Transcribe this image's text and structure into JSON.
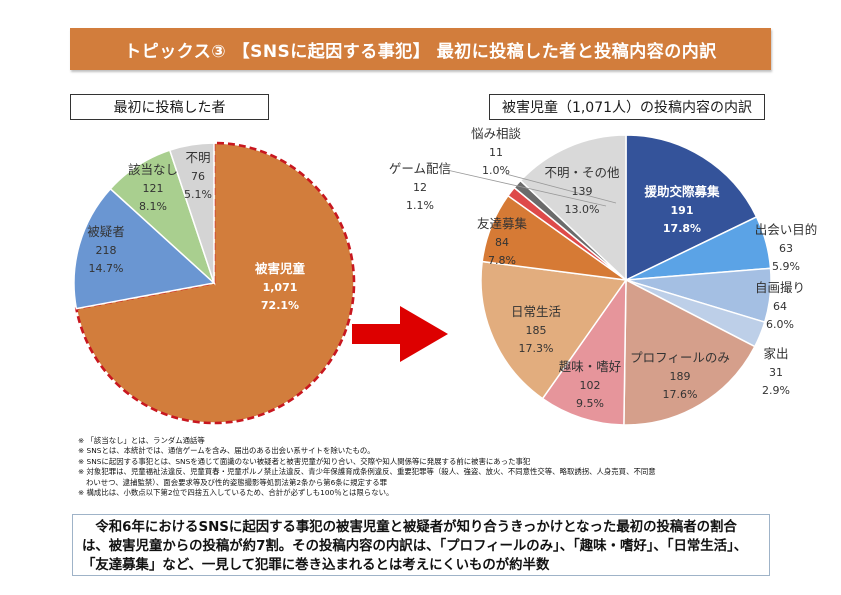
{
  "banner": {
    "title": "トピックス③ 【SNSに起因する事犯】 最初に投稿した者と投稿内容の内訳"
  },
  "arrow": {
    "color": "#dd0000"
  },
  "chart_data": [
    {
      "type": "pie",
      "title": "最初に投稿した者",
      "start": "12 o'clock, clockwise",
      "slices": [
        {
          "label": "被害児童",
          "value": 1071,
          "value_label": "1,071",
          "percent": "72.1%",
          "color": "#d27d3c",
          "highlight": true,
          "label_color": "#ffffff"
        },
        {
          "label": "被疑者",
          "value": 218,
          "value_label": "218",
          "percent": "14.7%",
          "color": "#6a96d2",
          "label_color": "#333333"
        },
        {
          "label": "該当なし",
          "value": 121,
          "value_label": "121",
          "percent": "8.1%",
          "color": "#a9cf8f",
          "label_color": "#333333"
        },
        {
          "label": "不明",
          "value": 76,
          "value_label": "76",
          "percent": "5.1%",
          "color": "#d4d4d4",
          "label_color": "#333333"
        }
      ],
      "highlight_border_color": "#c8171f"
    },
    {
      "type": "pie",
      "title": "被害児童（1,071人）の投稿内容の内訳",
      "start": "12 o'clock, clockwise",
      "slices": [
        {
          "label": "援助交際募集",
          "value": 191,
          "value_label": "191",
          "percent": "17.8%",
          "color": "#34539a",
          "label_color": "#ffffff"
        },
        {
          "label": "出会い目的",
          "value": 63,
          "value_label": "63",
          "percent": "5.9%",
          "color": "#5ba3e6",
          "label_color": "#333333"
        },
        {
          "label": "自画撮り",
          "value": 64,
          "value_label": "64",
          "percent": "6.0%",
          "color": "#a4bfe3",
          "label_color": "#333333"
        },
        {
          "label": "家出",
          "value": 31,
          "value_label": "31",
          "percent": "2.9%",
          "color": "#bdcfe8",
          "label_color": "#333333"
        },
        {
          "label": "プロフィールのみ",
          "value": 189,
          "value_label": "189",
          "percent": "17.6%",
          "color": "#d59f8b",
          "label_color": "#333333"
        },
        {
          "label": "趣味・嗜好",
          "value": 102,
          "value_label": "102",
          "percent": "9.5%",
          "color": "#e6959b",
          "label_color": "#333333"
        },
        {
          "label": "日常生活",
          "value": 185,
          "value_label": "185",
          "percent": "17.3%",
          "color": "#e2ad7e",
          "label_color": "#333333"
        },
        {
          "label": "友達募集",
          "value": 84,
          "value_label": "84",
          "percent": "7.8%",
          "color": "#d67a35",
          "label_color": "#333333"
        },
        {
          "label": "ゲーム配信",
          "value": 12,
          "value_label": "12",
          "percent": "1.1%",
          "color": "#de4a4a",
          "label_color": "#333333"
        },
        {
          "label": "悩み相談",
          "value": 11,
          "value_label": "11",
          "percent": "1.0%",
          "color": "#6b6b6b",
          "label_color": "#333333"
        },
        {
          "label": "不明・その他",
          "value": 139,
          "value_label": "139",
          "percent": "13.0%",
          "color": "#d9d9d9",
          "label_color": "#333333"
        }
      ]
    }
  ],
  "notes": [
    "※ 「該当なし」とは、ランダム通話等",
    "※ SNSとは、本統計では、通信ゲームを含み、届出のある出会い系サイトを除いたもの。",
    "※ SNSに起因する事犯とは、SNSを通じて面識のない被疑者と被害児童が知り合い、交際や知人関係等に発展する前に被害にあった事犯",
    "※ 対象犯罪は、児童福祉法違反、児童買春・児童ポルノ禁止法違反、青少年保護育成条例違反、重要犯罪等（殺人、強盗、放火、不同意性交等、略取誘拐、人身売買、不同意",
    "わいせつ、逮捕監禁）、面会要求等及び性的姿態撮影等処罰法第2条から第6条に規定する罪",
    "※ 構成比は、小数点以下第2位で四捨五入しているため、合計が必ずしも100％とは限らない。"
  ],
  "summary": "　令和6年におけるSNSに起因する事犯の被害児童と被疑者が知り合うきっかけとなった最初の投稿者の割合は、被害児童からの投稿が約7割。その投稿内容の内訳は、「プロフィールのみ」、「趣味・嗜好」、「日常生活」、「友達募集」など、一見して犯罪に巻き込まれるとは考えにくいものが約半数"
}
